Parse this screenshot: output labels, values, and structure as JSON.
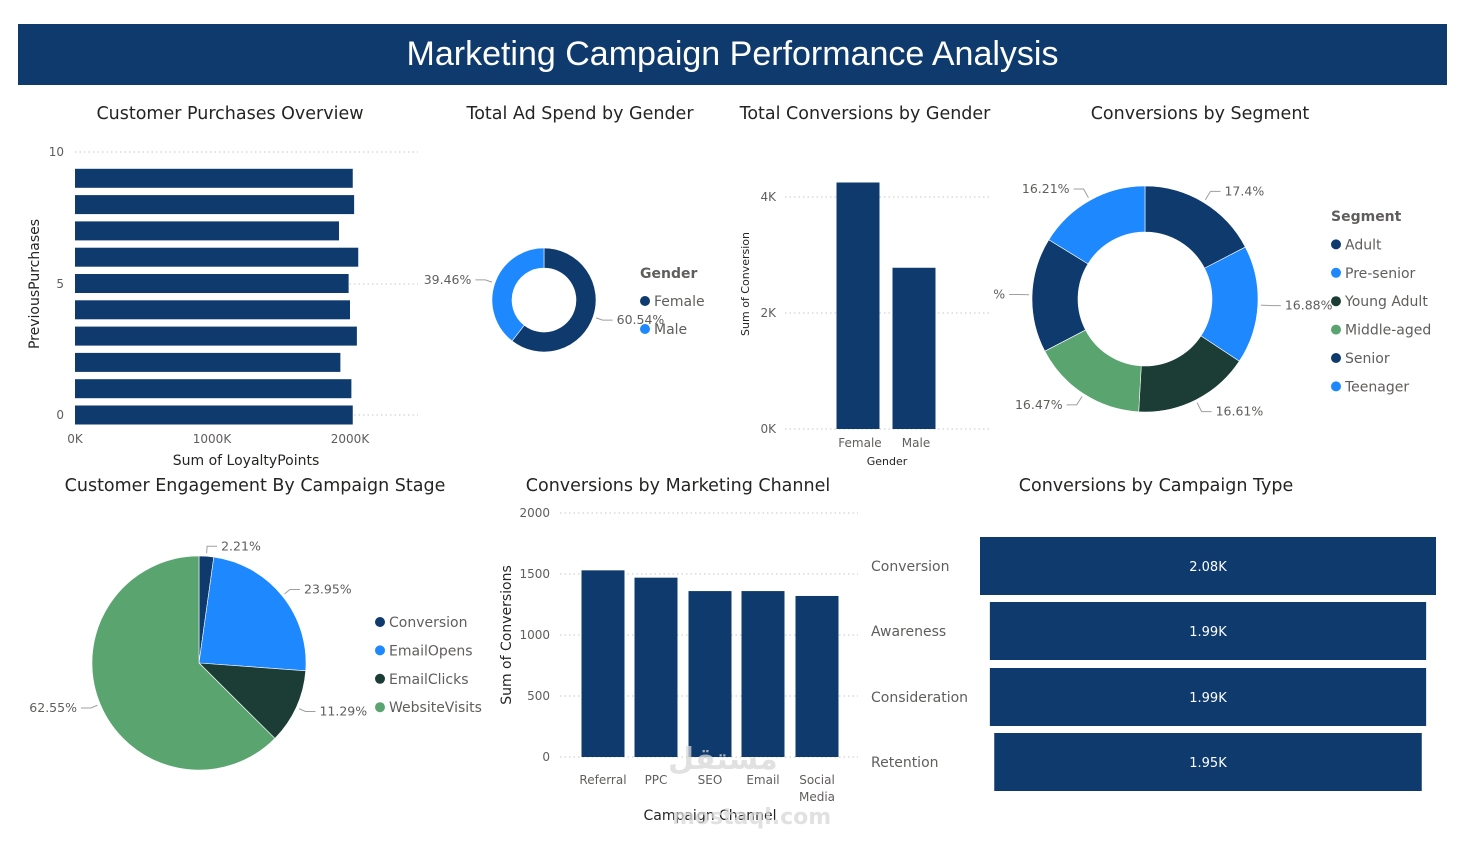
{
  "dashboard": {
    "title": "Marketing Campaign Performance Analysis"
  },
  "colors": {
    "navy": "#0f3a6e",
    "blue": "#1e88ff",
    "dark_green": "#1b3d36",
    "green": "#5aa470",
    "banner": "#0f3a6e"
  },
  "watermark": {
    "line1": "مستقل",
    "line2": "mostaql.com"
  },
  "chart_data": [
    {
      "id": "purchases",
      "type": "bar",
      "orientation": "horizontal",
      "title": "Customer Purchases Overview",
      "xlabel": "Sum of LoyaltyPoints",
      "ylabel": "PreviousPurchases",
      "x_ticks": [
        "0K",
        "1000K",
        "2000K"
      ],
      "y_ticks": [
        "10",
        "5",
        "0"
      ],
      "xlim": [
        0,
        2500
      ],
      "ylim": [
        -0.5,
        10
      ],
      "grid": true,
      "categories": [
        0,
        1,
        2,
        3,
        4,
        5,
        6,
        7,
        8,
        9
      ],
      "values": [
        2020,
        2010,
        1930,
        2050,
        2000,
        1990,
        2060,
        1920,
        2030,
        2020
      ]
    },
    {
      "id": "adspend",
      "type": "pie",
      "donut": true,
      "title": "Total Ad Spend by Gender",
      "legend_title": "Gender",
      "legend_position": "right",
      "slices": [
        {
          "label": "Female",
          "value": 60.54,
          "display": "60.54%",
          "color": "#0f3a6e"
        },
        {
          "label": "Male",
          "value": 39.46,
          "display": "39.46%",
          "color": "#1e88ff"
        }
      ]
    },
    {
      "id": "convgender",
      "type": "bar",
      "title": "Total Conversions by Gender",
      "xlabel": "Gender",
      "ylabel": "Sum of Conversion",
      "y_ticks": [
        "0K",
        "2K",
        "4K"
      ],
      "ylim": [
        0,
        4500
      ],
      "grid": true,
      "categories": [
        "Female",
        "Male"
      ],
      "values": [
        4250,
        2780
      ]
    },
    {
      "id": "segment",
      "type": "pie",
      "donut": true,
      "title": "Conversions by Segment",
      "legend_title": "Segment",
      "legend_position": "right",
      "slices": [
        {
          "label": "Adult",
          "value": 17.4,
          "display": "17.4%",
          "color": "#0f3a6e"
        },
        {
          "label": "Pre-senior",
          "value": 16.88,
          "display": "16.88%",
          "color": "#1e88ff"
        },
        {
          "label": "Young Adult",
          "value": 16.61,
          "display": "16.61%",
          "color": "#1b3d36"
        },
        {
          "label": "Middle-aged",
          "value": 16.47,
          "display": "16.47%",
          "color": "#5aa470"
        },
        {
          "label": "Senior",
          "value": 16.43,
          "display": "%",
          "color": "#0f3a6e"
        },
        {
          "label": "Teenager",
          "value": 16.21,
          "display": "16.21%",
          "color": "#1e88ff"
        }
      ]
    },
    {
      "id": "engagement",
      "type": "pie",
      "donut": false,
      "title": "Customer Engagement By Campaign Stage",
      "legend_position": "right",
      "slices": [
        {
          "label": "Conversion",
          "value": 2.21,
          "display": "2.21%",
          "color": "#0f3a6e"
        },
        {
          "label": "EmailOpens",
          "value": 23.95,
          "display": "23.95%",
          "color": "#1e88ff"
        },
        {
          "label": "EmailClicks",
          "value": 11.29,
          "display": "11.29%",
          "color": "#1b3d36"
        },
        {
          "label": "WebsiteVisits",
          "value": 62.55,
          "display": "62.55%",
          "color": "#5aa470"
        }
      ]
    },
    {
      "id": "channel",
      "type": "bar",
      "title": "Conversions by Marketing Channel",
      "xlabel": "Campaign Channel",
      "ylabel": "Sum of Conversions",
      "y_ticks": [
        "0",
        "500",
        "1000",
        "1500",
        "2000"
      ],
      "ylim": [
        0,
        2000
      ],
      "grid": true,
      "categories": [
        "Referral",
        "PPC",
        "SEO",
        "Email",
        "Social Media"
      ],
      "values": [
        1530,
        1470,
        1360,
        1360,
        1320
      ]
    },
    {
      "id": "camptype",
      "type": "bar",
      "orientation": "horizontal",
      "title": "Conversions by Campaign Type",
      "grid": true,
      "categories": [
        "Conversion",
        "Awareness",
        "Consideration",
        "Retention"
      ],
      "values": [
        2080,
        1990,
        1990,
        1950
      ],
      "data_labels": [
        "2.08K",
        "1.99K",
        "1.99K",
        "1.95K"
      ]
    }
  ]
}
